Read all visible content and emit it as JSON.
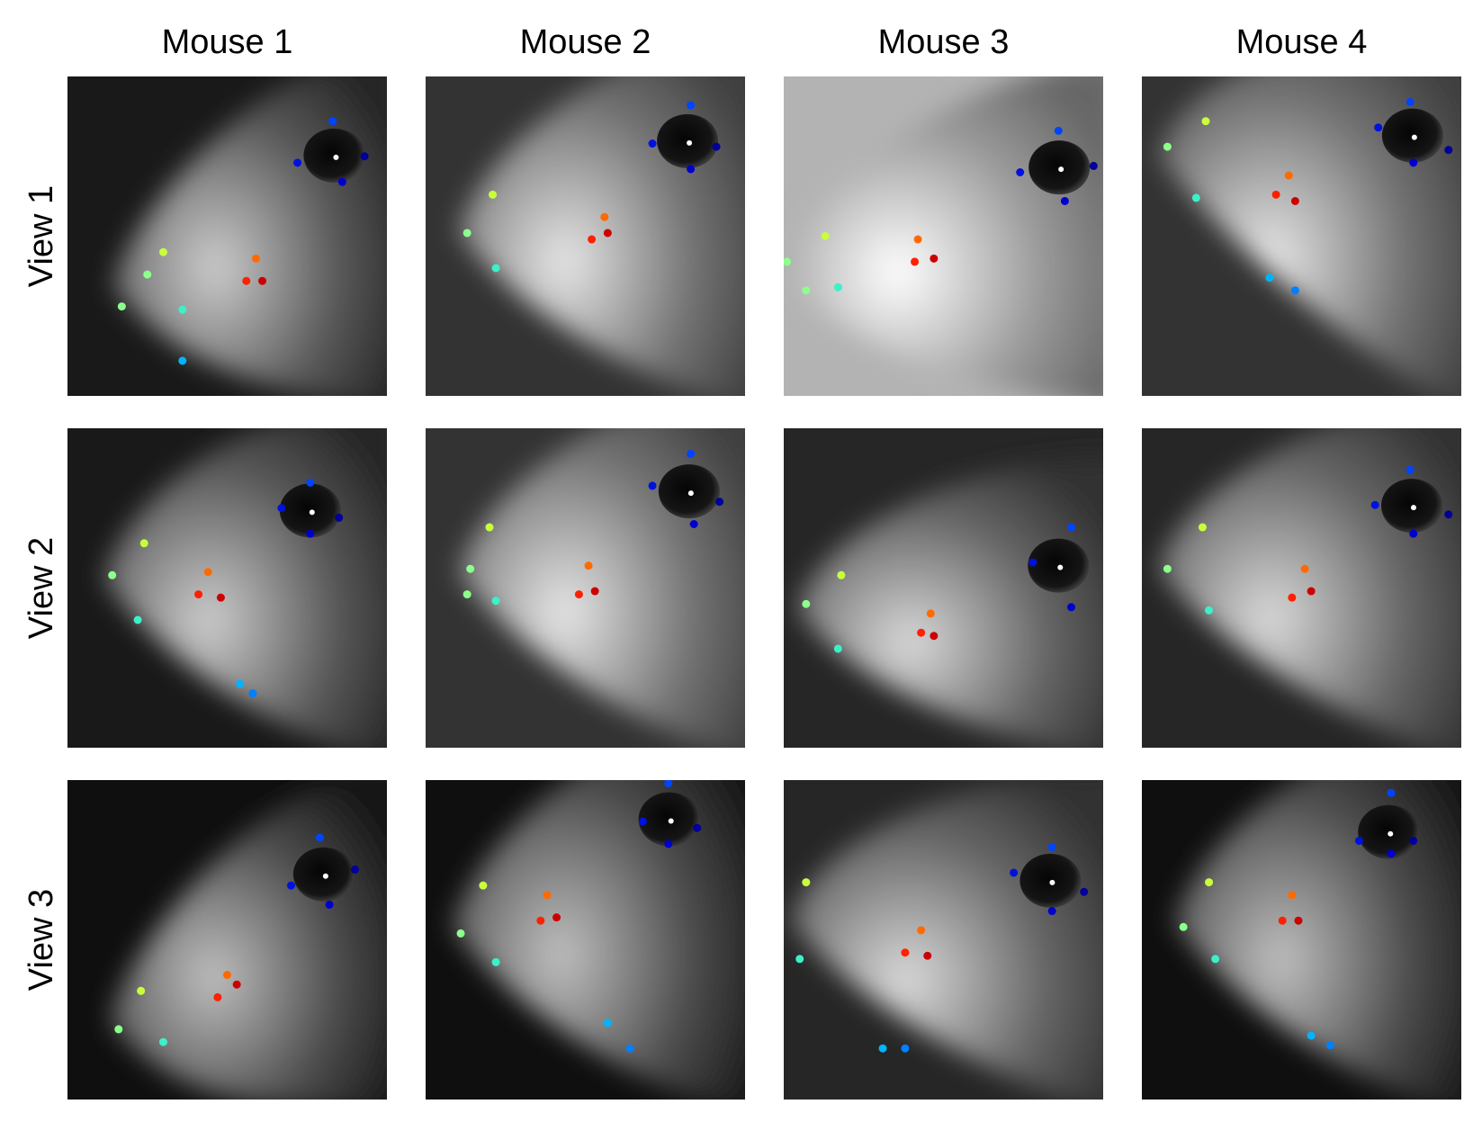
{
  "columns": [
    {
      "label": "Mouse 1"
    },
    {
      "label": "Mouse 2"
    },
    {
      "label": "Mouse 3"
    },
    {
      "label": "Mouse 4"
    }
  ],
  "rows": [
    {
      "label": "View 1"
    },
    {
      "label": "View 2"
    },
    {
      "label": "View 3"
    }
  ],
  "keypoint_colors": {
    "eye_top": "#0044ff",
    "eye_front": "#0011dd",
    "eye_back": "#000099",
    "eye_bottom": "#0000cc",
    "nose_top": "#c8ff3c",
    "nose_tip": "#8cff8c",
    "nose_bottom": "#3cf0c8",
    "chin": "#00b4ff",
    "chin_2": "#0080ff",
    "whisker_pad_top": "#ff6a00",
    "whisker_pad_left": "#ff2000",
    "whisker_pad_right": "#cc0000"
  },
  "panels": [
    {
      "mouse": 1,
      "view": 1,
      "background": "dark",
      "brightness": 0.35,
      "points": [
        {
          "c": "eye_top",
          "x": 0.83,
          "y": 0.14
        },
        {
          "c": "eye_front",
          "x": 0.72,
          "y": 0.27
        },
        {
          "c": "eye_back",
          "x": 0.93,
          "y": 0.25
        },
        {
          "c": "eye_bottom",
          "x": 0.86,
          "y": 0.33
        },
        {
          "c": "nose_top",
          "x": 0.3,
          "y": 0.55
        },
        {
          "c": "nose_tip",
          "x": 0.17,
          "y": 0.72
        },
        {
          "c": "nose_tip",
          "x": 0.25,
          "y": 0.62
        },
        {
          "c": "nose_bottom",
          "x": 0.36,
          "y": 0.73
        },
        {
          "c": "chin",
          "x": 0.36,
          "y": 0.89
        },
        {
          "c": "whisker_pad_top",
          "x": 0.59,
          "y": 0.57
        },
        {
          "c": "whisker_pad_left",
          "x": 0.56,
          "y": 0.64
        },
        {
          "c": "whisker_pad_right",
          "x": 0.61,
          "y": 0.64
        }
      ]
    },
    {
      "mouse": 2,
      "view": 1,
      "background": "dark",
      "brightness": 0.45,
      "points": [
        {
          "c": "eye_top",
          "x": 0.83,
          "y": 0.09
        },
        {
          "c": "eye_front",
          "x": 0.71,
          "y": 0.21
        },
        {
          "c": "eye_back",
          "x": 0.91,
          "y": 0.22
        },
        {
          "c": "eye_bottom",
          "x": 0.83,
          "y": 0.29
        },
        {
          "c": "nose_top",
          "x": 0.21,
          "y": 0.37
        },
        {
          "c": "nose_tip",
          "x": 0.13,
          "y": 0.49
        },
        {
          "c": "nose_bottom",
          "x": 0.22,
          "y": 0.6
        },
        {
          "c": "whisker_pad_top",
          "x": 0.56,
          "y": 0.44
        },
        {
          "c": "whisker_pad_left",
          "x": 0.52,
          "y": 0.51
        },
        {
          "c": "whisker_pad_right",
          "x": 0.57,
          "y": 0.49
        }
      ]
    },
    {
      "mouse": 3,
      "view": 1,
      "background": "bright",
      "brightness": 0.6,
      "points": [
        {
          "c": "eye_top",
          "x": 0.86,
          "y": 0.17
        },
        {
          "c": "eye_front",
          "x": 0.74,
          "y": 0.3
        },
        {
          "c": "eye_back",
          "x": 0.97,
          "y": 0.28
        },
        {
          "c": "eye_bottom",
          "x": 0.88,
          "y": 0.39
        },
        {
          "c": "nose_top",
          "x": 0.13,
          "y": 0.5
        },
        {
          "c": "nose_tip",
          "x": 0.01,
          "y": 0.58
        },
        {
          "c": "nose_tip",
          "x": 0.07,
          "y": 0.67
        },
        {
          "c": "nose_bottom",
          "x": 0.17,
          "y": 0.66
        },
        {
          "c": "whisker_pad_top",
          "x": 0.42,
          "y": 0.51
        },
        {
          "c": "whisker_pad_left",
          "x": 0.41,
          "y": 0.58
        },
        {
          "c": "whisker_pad_right",
          "x": 0.47,
          "y": 0.57
        }
      ]
    },
    {
      "mouse": 4,
      "view": 1,
      "background": "dark",
      "brightness": 0.45,
      "points": [
        {
          "c": "eye_top",
          "x": 0.84,
          "y": 0.08
        },
        {
          "c": "eye_front",
          "x": 0.74,
          "y": 0.16
        },
        {
          "c": "eye_back",
          "x": 0.96,
          "y": 0.23
        },
        {
          "c": "eye_bottom",
          "x": 0.85,
          "y": 0.27
        },
        {
          "c": "nose_top",
          "x": 0.2,
          "y": 0.14
        },
        {
          "c": "nose_tip",
          "x": 0.08,
          "y": 0.22
        },
        {
          "c": "nose_bottom",
          "x": 0.17,
          "y": 0.38
        },
        {
          "c": "chin",
          "x": 0.4,
          "y": 0.63
        },
        {
          "c": "chin_2",
          "x": 0.48,
          "y": 0.67
        },
        {
          "c": "whisker_pad_top",
          "x": 0.46,
          "y": 0.31
        },
        {
          "c": "whisker_pad_left",
          "x": 0.42,
          "y": 0.37
        },
        {
          "c": "whisker_pad_right",
          "x": 0.48,
          "y": 0.39
        }
      ]
    },
    {
      "mouse": 1,
      "view": 2,
      "background": "dark",
      "brightness": 0.35,
      "points": [
        {
          "c": "eye_top",
          "x": 0.76,
          "y": 0.17
        },
        {
          "c": "eye_front",
          "x": 0.67,
          "y": 0.25
        },
        {
          "c": "eye_back",
          "x": 0.85,
          "y": 0.28
        },
        {
          "c": "eye_bottom",
          "x": 0.76,
          "y": 0.33
        },
        {
          "c": "nose_top",
          "x": 0.24,
          "y": 0.36
        },
        {
          "c": "nose_tip",
          "x": 0.14,
          "y": 0.46
        },
        {
          "c": "nose_bottom",
          "x": 0.22,
          "y": 0.6
        },
        {
          "c": "chin",
          "x": 0.54,
          "y": 0.8
        },
        {
          "c": "chin_2",
          "x": 0.58,
          "y": 0.83
        },
        {
          "c": "whisker_pad_top",
          "x": 0.44,
          "y": 0.45
        },
        {
          "c": "whisker_pad_left",
          "x": 0.41,
          "y": 0.52
        },
        {
          "c": "whisker_pad_right",
          "x": 0.48,
          "y": 0.53
        }
      ]
    },
    {
      "mouse": 2,
      "view": 2,
      "background": "dark",
      "brightness": 0.45,
      "points": [
        {
          "c": "eye_top",
          "x": 0.83,
          "y": 0.08
        },
        {
          "c": "eye_front",
          "x": 0.71,
          "y": 0.18
        },
        {
          "c": "eye_back",
          "x": 0.92,
          "y": 0.23
        },
        {
          "c": "eye_bottom",
          "x": 0.84,
          "y": 0.3
        },
        {
          "c": "nose_top",
          "x": 0.2,
          "y": 0.31
        },
        {
          "c": "nose_tip",
          "x": 0.14,
          "y": 0.44
        },
        {
          "c": "nose_tip",
          "x": 0.13,
          "y": 0.52
        },
        {
          "c": "nose_bottom",
          "x": 0.22,
          "y": 0.54
        },
        {
          "c": "whisker_pad_top",
          "x": 0.51,
          "y": 0.43
        },
        {
          "c": "whisker_pad_left",
          "x": 0.48,
          "y": 0.52
        },
        {
          "c": "whisker_pad_right",
          "x": 0.53,
          "y": 0.51
        }
      ]
    },
    {
      "mouse": 3,
      "view": 2,
      "background": "dark",
      "brightness": 0.4,
      "points": [
        {
          "c": "eye_top",
          "x": 0.9,
          "y": 0.31
        },
        {
          "c": "eye_front",
          "x": 0.78,
          "y": 0.42
        },
        {
          "c": "eye_bottom",
          "x": 0.9,
          "y": 0.56
        },
        {
          "c": "nose_top",
          "x": 0.18,
          "y": 0.46
        },
        {
          "c": "nose_tip",
          "x": 0.07,
          "y": 0.55
        },
        {
          "c": "nose_bottom",
          "x": 0.17,
          "y": 0.69
        },
        {
          "c": "whisker_pad_top",
          "x": 0.46,
          "y": 0.58
        },
        {
          "c": "whisker_pad_left",
          "x": 0.43,
          "y": 0.64
        },
        {
          "c": "whisker_pad_right",
          "x": 0.47,
          "y": 0.65
        }
      ]
    },
    {
      "mouse": 4,
      "view": 2,
      "background": "dark",
      "brightness": 0.4,
      "points": [
        {
          "c": "eye_top",
          "x": 0.84,
          "y": 0.13
        },
        {
          "c": "eye_front",
          "x": 0.73,
          "y": 0.24
        },
        {
          "c": "eye_back",
          "x": 0.96,
          "y": 0.27
        },
        {
          "c": "eye_bottom",
          "x": 0.85,
          "y": 0.33
        },
        {
          "c": "nose_top",
          "x": 0.19,
          "y": 0.31
        },
        {
          "c": "nose_tip",
          "x": 0.08,
          "y": 0.44
        },
        {
          "c": "nose_bottom",
          "x": 0.21,
          "y": 0.57
        },
        {
          "c": "whisker_pad_top",
          "x": 0.51,
          "y": 0.44
        },
        {
          "c": "whisker_pad_left",
          "x": 0.47,
          "y": 0.53
        },
        {
          "c": "whisker_pad_right",
          "x": 0.53,
          "y": 0.51
        }
      ]
    },
    {
      "mouse": 1,
      "view": 3,
      "background": "dark",
      "brightness": 0.3,
      "points": [
        {
          "c": "eye_top",
          "x": 0.79,
          "y": 0.18
        },
        {
          "c": "eye_front",
          "x": 0.7,
          "y": 0.33
        },
        {
          "c": "eye_back",
          "x": 0.9,
          "y": 0.28
        },
        {
          "c": "eye_bottom",
          "x": 0.82,
          "y": 0.39
        },
        {
          "c": "nose_top",
          "x": 0.23,
          "y": 0.66
        },
        {
          "c": "nose_tip",
          "x": 0.16,
          "y": 0.78
        },
        {
          "c": "nose_bottom",
          "x": 0.3,
          "y": 0.82
        },
        {
          "c": "whisker_pad_top",
          "x": 0.5,
          "y": 0.61
        },
        {
          "c": "whisker_pad_left",
          "x": 0.47,
          "y": 0.68
        },
        {
          "c": "whisker_pad_right",
          "x": 0.53,
          "y": 0.64
        }
      ]
    },
    {
      "mouse": 2,
      "view": 3,
      "background": "dark",
      "brightness": 0.3,
      "points": [
        {
          "c": "eye_top",
          "x": 0.76,
          "y": 0.01
        },
        {
          "c": "eye_front",
          "x": 0.68,
          "y": 0.13
        },
        {
          "c": "eye_back",
          "x": 0.85,
          "y": 0.15
        },
        {
          "c": "eye_bottom",
          "x": 0.76,
          "y": 0.2
        },
        {
          "c": "nose_top",
          "x": 0.18,
          "y": 0.33
        },
        {
          "c": "nose_tip",
          "x": 0.11,
          "y": 0.48
        },
        {
          "c": "nose_bottom",
          "x": 0.22,
          "y": 0.57
        },
        {
          "c": "chin",
          "x": 0.57,
          "y": 0.76
        },
        {
          "c": "chin_2",
          "x": 0.64,
          "y": 0.84
        },
        {
          "c": "whisker_pad_top",
          "x": 0.38,
          "y": 0.36
        },
        {
          "c": "whisker_pad_left",
          "x": 0.36,
          "y": 0.44
        },
        {
          "c": "whisker_pad_right",
          "x": 0.41,
          "y": 0.43
        }
      ]
    },
    {
      "mouse": 3,
      "view": 3,
      "background": "dark",
      "brightness": 0.4,
      "points": [
        {
          "c": "eye_top",
          "x": 0.84,
          "y": 0.21
        },
        {
          "c": "eye_front",
          "x": 0.72,
          "y": 0.29
        },
        {
          "c": "eye_back",
          "x": 0.94,
          "y": 0.35
        },
        {
          "c": "eye_bottom",
          "x": 0.84,
          "y": 0.41
        },
        {
          "c": "nose_top",
          "x": 0.07,
          "y": 0.32
        },
        {
          "c": "nose_bottom",
          "x": 0.05,
          "y": 0.56
        },
        {
          "c": "chin",
          "x": 0.31,
          "y": 0.84
        },
        {
          "c": "chin_2",
          "x": 0.38,
          "y": 0.84
        },
        {
          "c": "whisker_pad_top",
          "x": 0.43,
          "y": 0.47
        },
        {
          "c": "whisker_pad_left",
          "x": 0.38,
          "y": 0.54
        },
        {
          "c": "whisker_pad_right",
          "x": 0.45,
          "y": 0.55
        }
      ]
    },
    {
      "mouse": 4,
      "view": 3,
      "background": "dark",
      "brightness": 0.3,
      "points": [
        {
          "c": "eye_top",
          "x": 0.78,
          "y": 0.04
        },
        {
          "c": "eye_front",
          "x": 0.68,
          "y": 0.19
        },
        {
          "c": "eye_back",
          "x": 0.85,
          "y": 0.19
        },
        {
          "c": "eye_bottom",
          "x": 0.78,
          "y": 0.23
        },
        {
          "c": "nose_top",
          "x": 0.21,
          "y": 0.32
        },
        {
          "c": "nose_tip",
          "x": 0.13,
          "y": 0.46
        },
        {
          "c": "nose_bottom",
          "x": 0.23,
          "y": 0.56
        },
        {
          "c": "chin",
          "x": 0.53,
          "y": 0.8
        },
        {
          "c": "chin_2",
          "x": 0.59,
          "y": 0.83
        },
        {
          "c": "whisker_pad_top",
          "x": 0.47,
          "y": 0.36
        },
        {
          "c": "whisker_pad_left",
          "x": 0.44,
          "y": 0.44
        },
        {
          "c": "whisker_pad_right",
          "x": 0.49,
          "y": 0.44
        }
      ]
    }
  ]
}
